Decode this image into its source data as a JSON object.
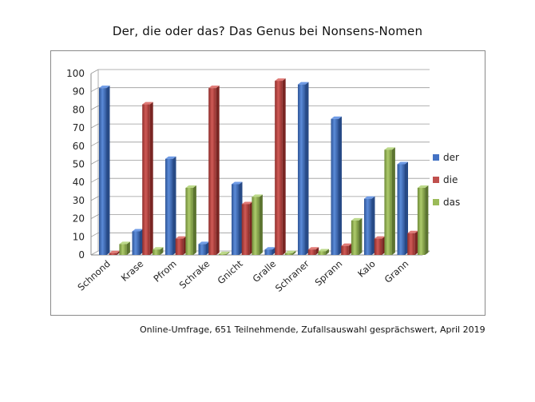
{
  "title": "Der, die oder das? Das Genus bei Nonsens-Nomen",
  "footnote": "Online-Umfrage, 651 Teilnehmende, Zufallsauswahl gesprächswert, April 2019",
  "chart_data": {
    "type": "bar",
    "title": "Der, die oder das? Das Genus bei Nonsens-Nomen",
    "xlabel": "",
    "ylabel": "",
    "ylim": [
      0,
      100
    ],
    "yticks": [
      0,
      10,
      20,
      30,
      40,
      50,
      60,
      70,
      80,
      90,
      100
    ],
    "grid": true,
    "legend_position": "right",
    "categories": [
      "Schnond",
      "Krase",
      "Pfrom",
      "Schrake",
      "Gnicht",
      "Gralle",
      "Schraner",
      "Sprann",
      "Kalo",
      "Grann"
    ],
    "series": [
      {
        "name": "der",
        "color": "#4472c4",
        "values": [
          92,
          13,
          53,
          6,
          39,
          3,
          94,
          75,
          31,
          50
        ]
      },
      {
        "name": "die",
        "color": "#c0504d",
        "values": [
          1,
          83,
          9,
          92,
          28,
          96,
          3,
          5,
          9,
          12
        ]
      },
      {
        "name": "das",
        "color": "#9bbb59",
        "values": [
          6,
          3,
          37,
          0.5,
          32,
          1,
          2,
          19,
          58,
          37
        ]
      }
    ]
  }
}
